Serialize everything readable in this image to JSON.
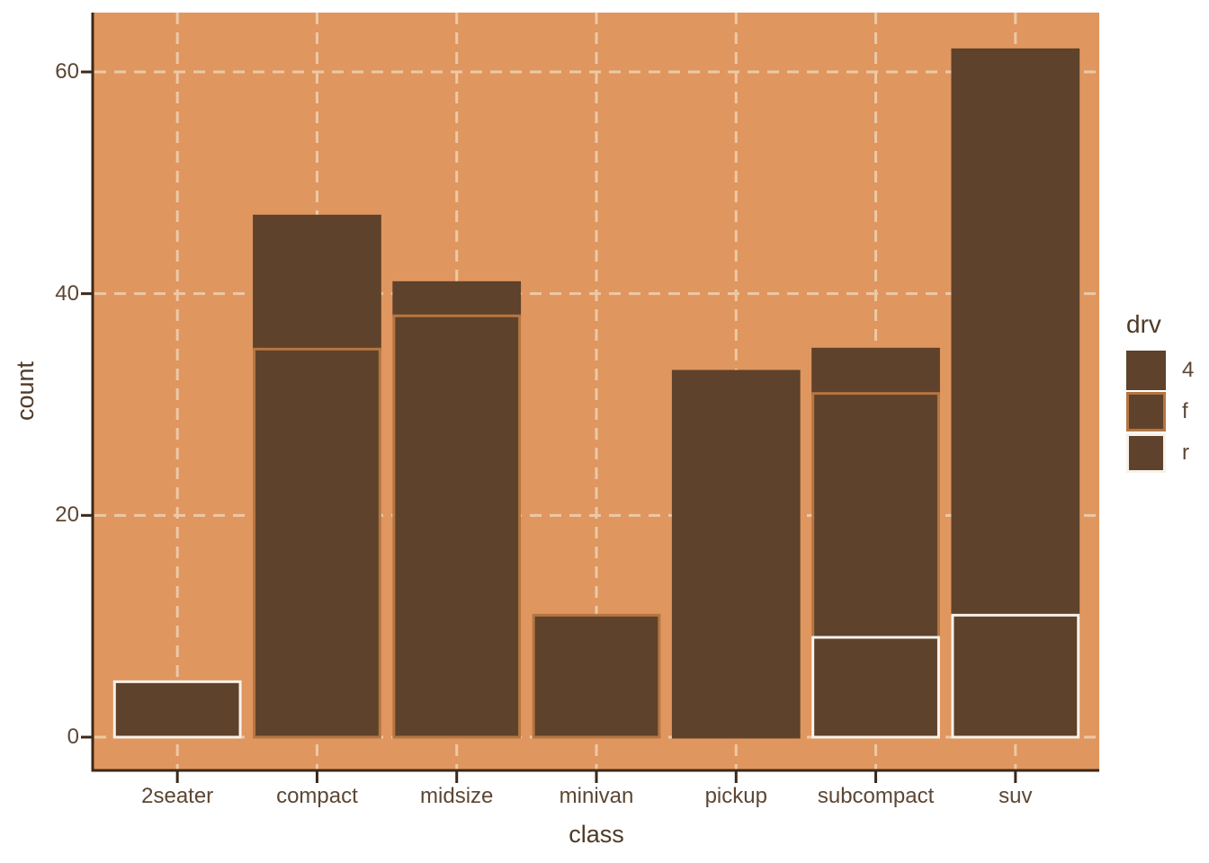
{
  "chart_data": {
    "type": "bar",
    "stacked": true,
    "title": "",
    "xlabel": "class",
    "ylabel": "count",
    "categories": [
      "2seater",
      "compact",
      "midsize",
      "minivan",
      "pickup",
      "subcompact",
      "suv"
    ],
    "series": [
      {
        "name": "4",
        "values": [
          0,
          12,
          3,
          0,
          33,
          4,
          51
        ],
        "outline": "#5E422B"
      },
      {
        "name": "f",
        "values": [
          0,
          35,
          38,
          11,
          0,
          22,
          0
        ],
        "outline": "#B57642"
      },
      {
        "name": "r",
        "values": [
          5,
          0,
          0,
          0,
          0,
          9,
          11
        ],
        "outline": "#F6F2EA"
      }
    ],
    "totals": [
      5,
      47,
      41,
      11,
      33,
      35,
      62
    ],
    "stack_order_bottom_to_top": [
      "r",
      "f",
      "4"
    ],
    "bar_fill": "#5E422B",
    "bar_width_fraction": 0.9,
    "ylim": [
      0,
      65
    ],
    "yticks": [
      0,
      20,
      40,
      60
    ],
    "grid": {
      "on": true,
      "style": "dashed",
      "color": "#ECC9A6"
    },
    "panel_bg": "#E0965F",
    "axis_color": "#3B2919",
    "text_color": "#5C4633",
    "legend": {
      "title": "drv",
      "position": "right",
      "entries": [
        {
          "label": "4"
        },
        {
          "label": "f"
        },
        {
          "label": "r"
        }
      ]
    }
  }
}
